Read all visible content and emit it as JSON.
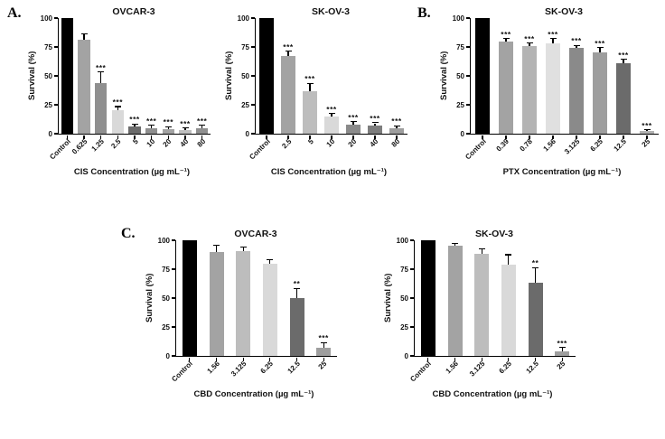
{
  "figure": {
    "panel_a_label": "A.",
    "panel_b_label": "B.",
    "panel_c_label": "C."
  },
  "chart_data": [
    {
      "panel": "A",
      "type": "bar",
      "title": "OVCAR-3",
      "ylabel": "Survival (%)",
      "xlabel": "CIS Concentration (µg mL⁻¹)",
      "ylim": [
        0,
        100
      ],
      "yticks": [
        0,
        25,
        50,
        75,
        100
      ],
      "grid": false,
      "legend": false,
      "categories": [
        "Control",
        "0.625",
        "1.25",
        "2.5",
        "5",
        "10",
        "20",
        "40",
        "80"
      ],
      "values": [
        100,
        81,
        44,
        20,
        6,
        5,
        4,
        3,
        5
      ],
      "errors": [
        0,
        5,
        9,
        3,
        2,
        2,
        1.5,
        1.5,
        2
      ],
      "significance": [
        "",
        "",
        "***",
        "***",
        "***",
        "***",
        "***",
        "***",
        "***"
      ],
      "bar_colors": [
        "#000000",
        "#a3a3a3",
        "#8f8f8f",
        "#d9d9d9",
        "#6b6b6b",
        "#8f8f8f",
        "#a3a3a3",
        "#bfbfbf",
        "#8f8f8f"
      ]
    },
    {
      "panel": "A",
      "type": "bar",
      "title": "SK-OV-3",
      "ylabel": "Survival (%)",
      "xlabel": "CIS Concentration (µg mL⁻¹)",
      "ylim": [
        0,
        100
      ],
      "yticks": [
        0,
        25,
        50,
        75,
        100
      ],
      "grid": false,
      "legend": false,
      "categories": [
        "Control",
        "2.5",
        "5",
        "10",
        "20",
        "40",
        "80"
      ],
      "values": [
        100,
        67,
        37,
        15,
        8,
        7,
        5
      ],
      "errors": [
        0,
        4,
        6,
        2,
        2,
        2,
        1.5
      ],
      "significance": [
        "",
        "***",
        "***",
        "***",
        "***",
        "***",
        "***"
      ],
      "bar_colors": [
        "#000000",
        "#a3a3a3",
        "#bdbdbd",
        "#d9d9d9",
        "#8a8a8a",
        "#7d7d7d",
        "#9e9e9e"
      ]
    },
    {
      "panel": "B",
      "type": "bar",
      "title": "SK-OV-3",
      "ylabel": "Survival (%)",
      "xlabel": "PTX Concentration (µg mL⁻¹)",
      "ylim": [
        0,
        100
      ],
      "yticks": [
        0,
        25,
        50,
        75,
        100
      ],
      "grid": false,
      "legend": false,
      "categories": [
        "Control",
        "0.39",
        "0.78",
        "1.56",
        "3.125",
        "6.25",
        "12.5",
        "25"
      ],
      "values": [
        100,
        80,
        76,
        78,
        74,
        70,
        61,
        2
      ],
      "errors": [
        0,
        2,
        2,
        4,
        2,
        4,
        3,
        1
      ],
      "significance": [
        "",
        "***",
        "***",
        "***",
        "***",
        "***",
        "***",
        "***"
      ],
      "bar_colors": [
        "#000000",
        "#a3a3a3",
        "#b3b3b3",
        "#e0e0e0",
        "#8a8a8a",
        "#9e9e9e",
        "#6b6b6b",
        "#b3b3b3"
      ]
    },
    {
      "panel": "C",
      "type": "bar",
      "title": "OVCAR-3",
      "ylabel": "Survival (%)",
      "xlabel": "CBD Concentration (µg mL⁻¹)",
      "ylim": [
        0,
        100
      ],
      "yticks": [
        0,
        25,
        50,
        75,
        100
      ],
      "grid": false,
      "legend": false,
      "categories": [
        "Control",
        "1.56",
        "3.125",
        "6.25",
        "12.5",
        "25"
      ],
      "values": [
        100,
        90,
        91,
        80,
        50,
        7
      ],
      "errors": [
        0,
        5,
        3,
        3,
        8,
        4
      ],
      "significance": [
        "",
        "",
        "",
        "",
        "**",
        "***"
      ],
      "bar_colors": [
        "#000000",
        "#a3a3a3",
        "#bdbdbd",
        "#d9d9d9",
        "#6b6b6b",
        "#9e9e9e"
      ]
    },
    {
      "panel": "C",
      "type": "bar",
      "title": "SK-OV-3",
      "ylabel": "Survival (%)",
      "xlabel": "CBD Concentration (µg mL⁻¹)",
      "ylim": [
        0,
        100
      ],
      "yticks": [
        0,
        25,
        50,
        75,
        100
      ],
      "grid": false,
      "legend": false,
      "categories": [
        "Control",
        "1.56",
        "3.125",
        "6.25",
        "12.5",
        "25"
      ],
      "values": [
        100,
        95,
        88,
        79,
        63,
        4
      ],
      "errors": [
        0,
        2,
        4,
        8,
        13,
        3
      ],
      "significance": [
        "",
        "",
        "",
        "",
        "**",
        "***"
      ],
      "bar_colors": [
        "#000000",
        "#a3a3a3",
        "#bdbdbd",
        "#d9d9d9",
        "#6b6b6b",
        "#9e9e9e"
      ]
    }
  ]
}
